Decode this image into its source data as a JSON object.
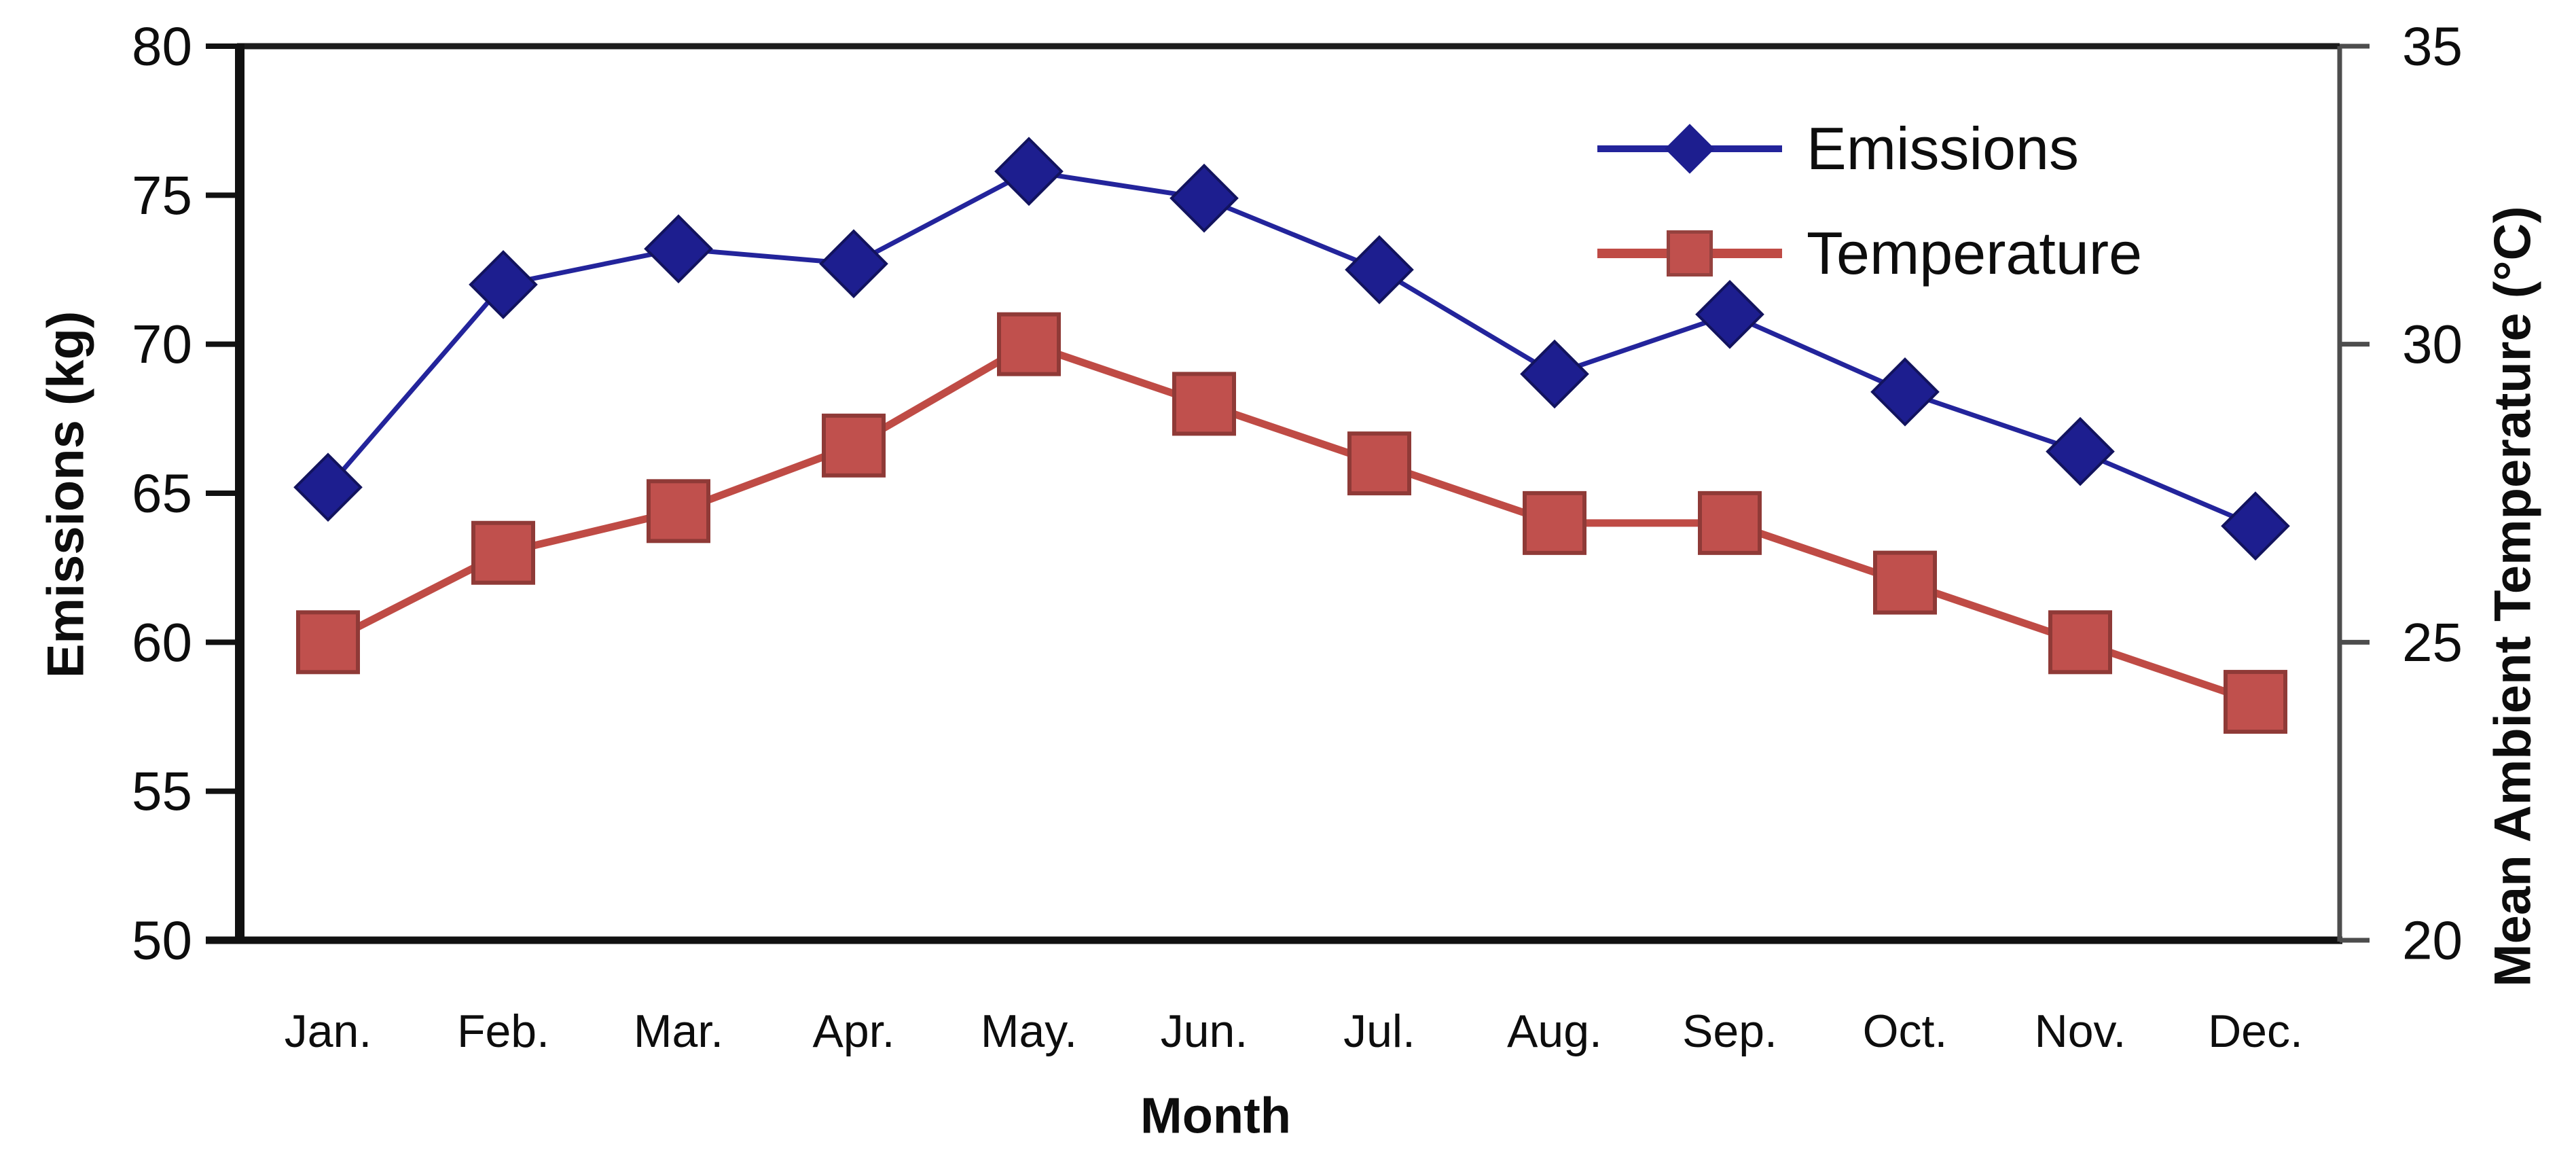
{
  "chart_data": {
    "type": "line",
    "title": "",
    "categories": [
      "Jan.",
      "Feb.",
      "Mar.",
      "Apr.",
      "May.",
      "Jun.",
      "Jul.",
      "Aug.",
      "Sep.",
      "Oct.",
      "Nov.",
      "Dec."
    ],
    "xlabel": "Month",
    "y_left": {
      "label": "Emissions (kg)",
      "min": 50,
      "max": 80,
      "ticks": [
        80,
        75,
        70,
        65,
        60,
        55,
        50
      ]
    },
    "y_right": {
      "label": "Mean Ambient Temperature (°C)",
      "min": 20,
      "max": 35,
      "ticks": [
        35,
        30,
        25,
        20
      ]
    },
    "grid": false,
    "legend_position": "inside-top-right",
    "series": [
      {
        "name": "Emissions",
        "axis": "left",
        "marker": "diamond",
        "line_color": "#23249b",
        "marker_color": "#1d1e8f",
        "values": [
          65.2,
          72.0,
          73.2,
          72.7,
          75.8,
          74.9,
          72.5,
          69.0,
          71.0,
          68.4,
          66.4,
          63.9
        ]
      },
      {
        "name": "Temperature",
        "axis": "right",
        "marker": "square",
        "line_color": "#bf4b45",
        "marker_color": "#c0504d",
        "values": [
          25.0,
          26.5,
          27.2,
          28.3,
          30.0,
          29.0,
          28.0,
          27.0,
          27.0,
          26.0,
          25.0,
          24.0
        ]
      }
    ]
  }
}
